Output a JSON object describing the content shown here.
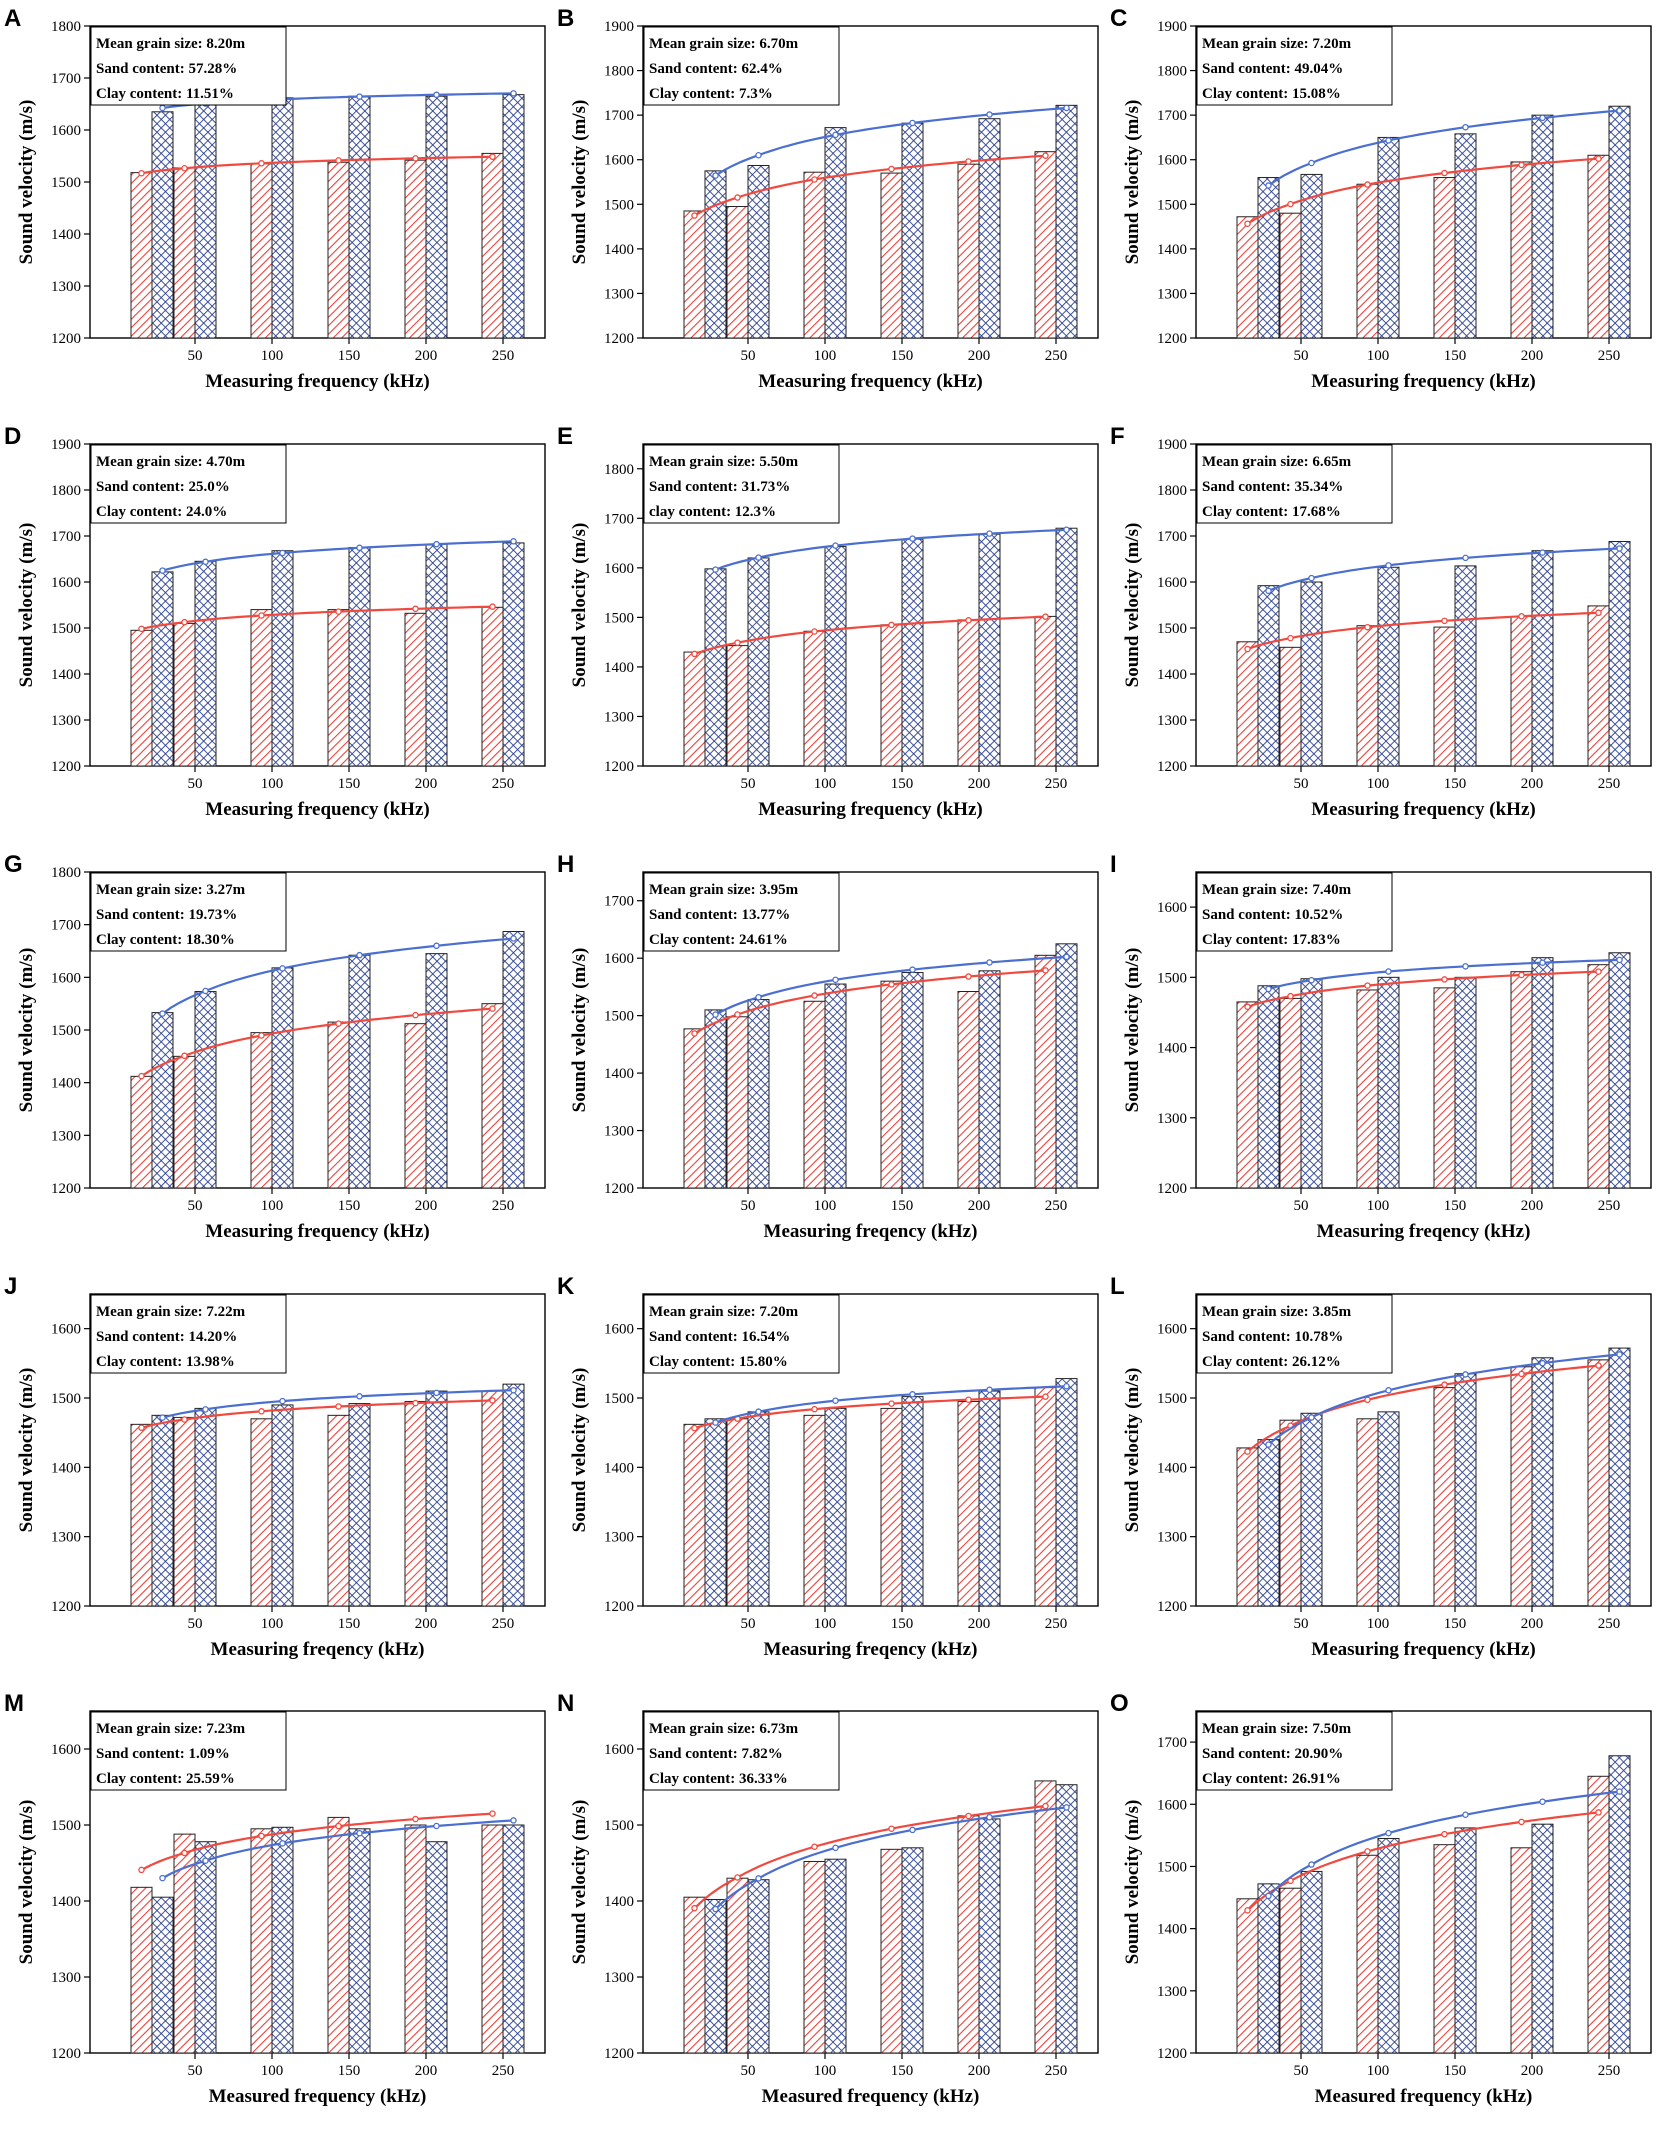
{
  "colors": {
    "red": "#e8413a",
    "blue": "#3b5bb5",
    "red_line": "#f04a40",
    "blue_line": "#4a6fd0",
    "axis": "#000000"
  },
  "chart_data": [
    {
      "label": "A",
      "type": "bar",
      "x": [
        25,
        50,
        100,
        150,
        200,
        250
      ],
      "ylim": [
        1200,
        1800
      ],
      "ticks": [
        1200,
        1300,
        1400,
        1500,
        1600,
        1700,
        1800
      ],
      "xlabel": "Measuring frequency (kHz)",
      "ylabel": "Sound velocity (m/s)",
      "annotations": [
        "Mean grain size: 8.20m",
        "Sand content: 57.28%",
        "Clay content: 11.51%"
      ],
      "series": [
        {
          "name": "red",
          "values": [
            1518,
            1527,
            1535,
            1538,
            1542,
            1555
          ]
        },
        {
          "name": "blue",
          "values": [
            1635,
            1660,
            1662,
            1665,
            1665,
            1668
          ]
        }
      ]
    },
    {
      "label": "B",
      "type": "bar",
      "x": [
        25,
        50,
        100,
        150,
        200,
        250
      ],
      "ylim": [
        1200,
        1900
      ],
      "ticks": [
        1200,
        1300,
        1400,
        1500,
        1600,
        1700,
        1800,
        1900
      ],
      "xlabel": "Measuring frequency (kHz)",
      "ylabel": "Sound velocity (m/s)",
      "annotations": [
        "Mean grain size: 6.70m",
        "Sand content: 62.4%",
        "Clay content: 7.3%"
      ],
      "series": [
        {
          "name": "red",
          "values": [
            1485,
            1495,
            1572,
            1570,
            1590,
            1618
          ]
        },
        {
          "name": "blue",
          "values": [
            1575,
            1587,
            1672,
            1682,
            1692,
            1722
          ]
        }
      ]
    },
    {
      "label": "C",
      "type": "bar",
      "x": [
        25,
        50,
        100,
        150,
        200,
        250
      ],
      "ylim": [
        1200,
        1900
      ],
      "ticks": [
        1200,
        1300,
        1400,
        1500,
        1600,
        1700,
        1800,
        1900
      ],
      "xlabel": "Measuring frequency (kHz)",
      "ylabel": "Sound velocity (m/s)",
      "annotations": [
        "Mean grain size: 7.20m",
        "Sand content: 49.04%",
        "Clay content: 15.08%"
      ],
      "series": [
        {
          "name": "red",
          "values": [
            1472,
            1480,
            1545,
            1560,
            1595,
            1610
          ]
        },
        {
          "name": "blue",
          "values": [
            1560,
            1567,
            1650,
            1658,
            1700,
            1720
          ]
        }
      ]
    },
    {
      "label": "D",
      "type": "bar",
      "x": [
        25,
        50,
        100,
        150,
        200,
        250
      ],
      "ylim": [
        1200,
        1900
      ],
      "ticks": [
        1200,
        1300,
        1400,
        1500,
        1600,
        1700,
        1800,
        1900
      ],
      "xlabel": "Measuring frequency (kHz)",
      "ylabel": "Sound velocity (m/s)",
      "annotations": [
        "Mean grain size: 4.70m",
        "Sand content: 25.0%",
        "Clay content: 24.0%"
      ],
      "series": [
        {
          "name": "red",
          "values": [
            1495,
            1510,
            1540,
            1540,
            1532,
            1545
          ]
        },
        {
          "name": "blue",
          "values": [
            1622,
            1645,
            1668,
            1675,
            1682,
            1685
          ]
        }
      ]
    },
    {
      "label": "E",
      "type": "bar",
      "x": [
        25,
        50,
        100,
        150,
        200,
        250
      ],
      "ylim": [
        1200,
        1850
      ],
      "ticks": [
        1200,
        1300,
        1400,
        1500,
        1600,
        1700,
        1800
      ],
      "xlabel": "Measuring frequency (kHz)",
      "ylabel": "Sound velocity (m/s)",
      "annotations": [
        "Mean grain size: 5.50m",
        "Sand content: 31.73%",
        "clay content: 12.3%"
      ],
      "series": [
        {
          "name": "red",
          "values": [
            1430,
            1443,
            1472,
            1485,
            1495,
            1502
          ]
        },
        {
          "name": "blue",
          "values": [
            1598,
            1620,
            1643,
            1658,
            1668,
            1680
          ]
        }
      ]
    },
    {
      "label": "F",
      "type": "bar",
      "x": [
        25,
        50,
        100,
        150,
        200,
        250
      ],
      "ylim": [
        1200,
        1900
      ],
      "ticks": [
        1200,
        1300,
        1400,
        1500,
        1600,
        1700,
        1800,
        1900
      ],
      "xlabel": "Measuring frequency (kHz)",
      "ylabel": "Sound velocity (m/s)",
      "annotations": [
        "Mean grain size: 6.65m",
        "Sand content: 35.34%",
        "Clay content: 17.68%"
      ],
      "series": [
        {
          "name": "red",
          "values": [
            1470,
            1458,
            1505,
            1502,
            1525,
            1548
          ]
        },
        {
          "name": "blue",
          "values": [
            1592,
            1600,
            1632,
            1635,
            1668,
            1688
          ]
        }
      ]
    },
    {
      "label": "G",
      "type": "bar",
      "x": [
        25,
        50,
        100,
        150,
        200,
        250
      ],
      "ylim": [
        1200,
        1800
      ],
      "ticks": [
        1200,
        1300,
        1400,
        1500,
        1600,
        1700,
        1800
      ],
      "xlabel": "Measuring frequency (kHz)",
      "ylabel": "Sound velocity (m/s)",
      "annotations": [
        "Mean grain size: 3.27m",
        "Sand content: 19.73%",
        "Clay content: 18.30%"
      ],
      "series": [
        {
          "name": "red",
          "values": [
            1412,
            1450,
            1495,
            1515,
            1512,
            1550
          ]
        },
        {
          "name": "blue",
          "values": [
            1533,
            1573,
            1618,
            1642,
            1645,
            1687
          ]
        }
      ]
    },
    {
      "label": "H",
      "type": "bar",
      "x": [
        25,
        50,
        100,
        150,
        200,
        250
      ],
      "ylim": [
        1200,
        1750
      ],
      "ticks": [
        1200,
        1300,
        1400,
        1500,
        1600,
        1700
      ],
      "xlabel": "Measuring freqency (kHz)",
      "ylabel": "Sound velocity (m/s)",
      "annotations": [
        "Mean grain size: 3.95m",
        "Sand content: 13.77%",
        "Clay content: 24.61%"
      ],
      "series": [
        {
          "name": "red",
          "values": [
            1477,
            1498,
            1525,
            1560,
            1542,
            1605
          ]
        },
        {
          "name": "blue",
          "values": [
            1510,
            1528,
            1555,
            1575,
            1578,
            1625
          ]
        }
      ]
    },
    {
      "label": "I",
      "type": "bar",
      "x": [
        25,
        50,
        100,
        150,
        200,
        250
      ],
      "ylim": [
        1200,
        1650
      ],
      "ticks": [
        1200,
        1300,
        1400,
        1500,
        1600
      ],
      "xlabel": "Measuring freqency (kHz)",
      "ylabel": "Sound velocity (m/s)",
      "annotations": [
        "Mean grain size: 7.40m",
        "Sand content: 10.52%",
        "Clay content: 17.83%"
      ],
      "series": [
        {
          "name": "red",
          "values": [
            1465,
            1470,
            1482,
            1485,
            1508,
            1518
          ]
        },
        {
          "name": "blue",
          "values": [
            1488,
            1498,
            1500,
            1500,
            1528,
            1535
          ]
        }
      ]
    },
    {
      "label": "J",
      "type": "bar",
      "x": [
        25,
        50,
        100,
        150,
        200,
        250
      ],
      "ylim": [
        1200,
        1650
      ],
      "ticks": [
        1200,
        1300,
        1400,
        1500,
        1600
      ],
      "xlabel": "Measuring freqency (kHz)",
      "ylabel": "Sound velocity (m/s)",
      "annotations": [
        "Mean grain size: 7.22m",
        "Sand content: 14.20%",
        "Clay content: 13.98%"
      ],
      "series": [
        {
          "name": "red",
          "values": [
            1462,
            1472,
            1470,
            1475,
            1495,
            1510
          ]
        },
        {
          "name": "blue",
          "values": [
            1475,
            1485,
            1490,
            1492,
            1510,
            1520
          ]
        }
      ]
    },
    {
      "label": "K",
      "type": "bar",
      "x": [
        25,
        50,
        100,
        150,
        200,
        250
      ],
      "ylim": [
        1200,
        1650
      ],
      "ticks": [
        1200,
        1300,
        1400,
        1500,
        1600
      ],
      "xlabel": "Measuring freqency (kHz)",
      "ylabel": "Sound velocity (m/s)",
      "annotations": [
        "Mean grain size: 7.20m",
        "Sand content: 16.54%",
        "Clay content: 15.80%"
      ],
      "series": [
        {
          "name": "red",
          "values": [
            1462,
            1470,
            1475,
            1485,
            1495,
            1515
          ]
        },
        {
          "name": "blue",
          "values": [
            1470,
            1480,
            1485,
            1502,
            1510,
            1528
          ]
        }
      ]
    },
    {
      "label": "L",
      "type": "bar",
      "x": [
        25,
        50,
        100,
        150,
        200,
        250
      ],
      "ylim": [
        1200,
        1650
      ],
      "ticks": [
        1200,
        1300,
        1400,
        1500,
        1600
      ],
      "xlabel": "Measuring frequency (kHz)",
      "ylabel": "Sound velocity (m/s)",
      "annotations": [
        "Mean grain size: 3.85m",
        "Sand content: 10.78%",
        "Clay content: 26.12%"
      ],
      "series": [
        {
          "name": "red",
          "values": [
            1428,
            1468,
            1470,
            1515,
            1545,
            1555
          ]
        },
        {
          "name": "blue",
          "values": [
            1440,
            1478,
            1480,
            1535,
            1558,
            1572
          ]
        }
      ]
    },
    {
      "label": "M",
      "type": "bar",
      "x": [
        25,
        50,
        100,
        150,
        200,
        250
      ],
      "ylim": [
        1200,
        1650
      ],
      "ticks": [
        1200,
        1300,
        1400,
        1500,
        1600
      ],
      "xlabel": "Measured frequency (kHz)",
      "ylabel": "Sound velocity (m/s)",
      "annotations": [
        "Mean grain size: 7.23m",
        "Sand content: 1.09%",
        "Clay content: 25.59%"
      ],
      "series": [
        {
          "name": "red",
          "values": [
            1418,
            1488,
            1495,
            1510,
            1500,
            1500
          ]
        },
        {
          "name": "blue",
          "values": [
            1405,
            1478,
            1497,
            1495,
            1478,
            1500
          ]
        }
      ]
    },
    {
      "label": "N",
      "type": "bar",
      "x": [
        25,
        50,
        100,
        150,
        200,
        250
      ],
      "ylim": [
        1200,
        1650
      ],
      "ticks": [
        1200,
        1300,
        1400,
        1500,
        1600
      ],
      "xlabel": "Measured frequency (kHz)",
      "ylabel": "Sound velocity (m/s)",
      "annotations": [
        "Mean grain size: 6.73m",
        "Sand content: 7.82%",
        "Clay content: 36.33%"
      ],
      "series": [
        {
          "name": "red",
          "values": [
            1405,
            1430,
            1452,
            1468,
            1512,
            1558
          ]
        },
        {
          "name": "blue",
          "values": [
            1402,
            1428,
            1455,
            1470,
            1508,
            1553
          ]
        }
      ]
    },
    {
      "label": "O",
      "type": "bar",
      "x": [
        25,
        50,
        100,
        150,
        200,
        250
      ],
      "ylim": [
        1200,
        1750
      ],
      "ticks": [
        1200,
        1300,
        1400,
        1500,
        1600,
        1700
      ],
      "xlabel": "Measured frequency (kHz)",
      "ylabel": "Sound velocity (m/s)",
      "annotations": [
        "Mean grain size: 7.50m",
        "Sand content: 20.90%",
        "Clay content: 26.91%"
      ],
      "series": [
        {
          "name": "red",
          "values": [
            1448,
            1465,
            1518,
            1535,
            1530,
            1645
          ]
        },
        {
          "name": "blue",
          "values": [
            1472,
            1492,
            1545,
            1562,
            1568,
            1678
          ]
        }
      ]
    }
  ]
}
